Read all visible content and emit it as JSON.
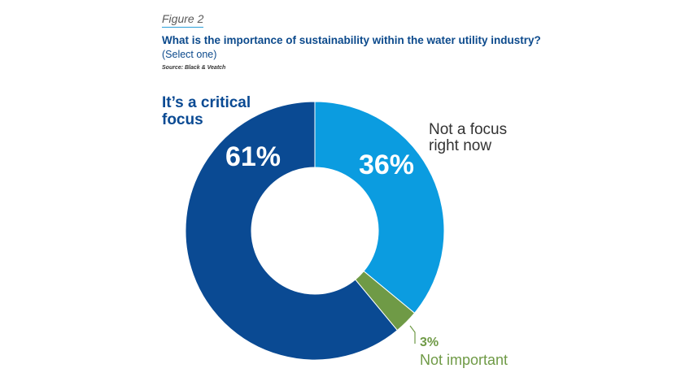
{
  "figure_label": "Figure 2",
  "chart_data": {
    "type": "pie",
    "donut": true,
    "title": "What is the importance of sustainability within the water utility industry?",
    "subtitle": "(Select one)",
    "source": "Source: Black & Veatch",
    "series": [
      {
        "name": "It’s a critical focus",
        "name_lines": [
          "It’s a critical",
          "focus"
        ],
        "value": 61,
        "value_label": "61%",
        "color": "#0a4a93"
      },
      {
        "name": "Not a focus right now",
        "name_lines": [
          "Not a focus",
          "right now"
        ],
        "value": 36,
        "value_label": "36%",
        "color": "#0b9ce0"
      },
      {
        "name": "Not important",
        "name_lines": [
          "Not important"
        ],
        "value": 3,
        "value_label": "3%",
        "color": "#6f9a46"
      }
    ]
  }
}
